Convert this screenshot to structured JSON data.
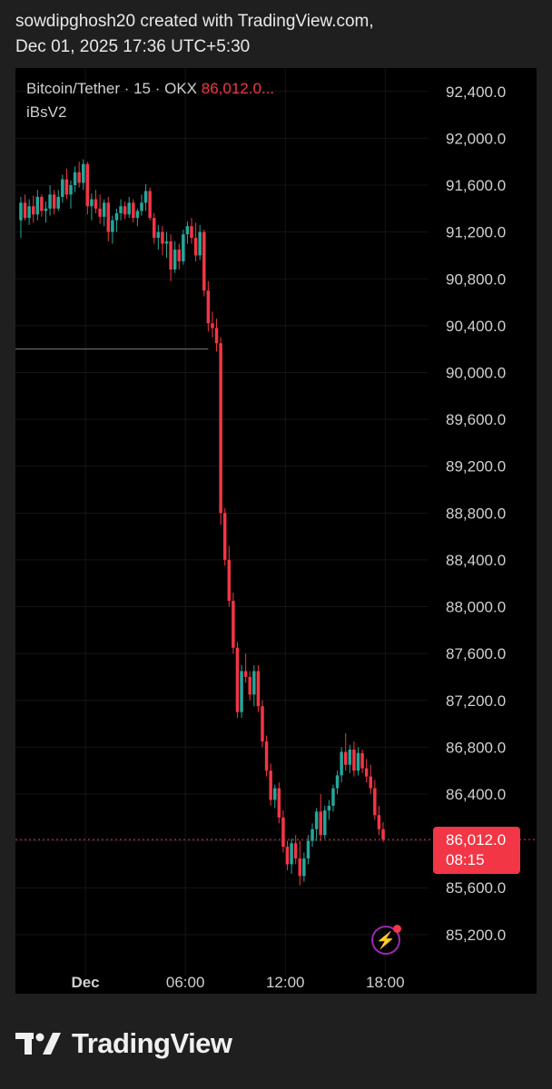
{
  "header": {
    "line1": "sowdipghosh20 created with TradingView.com,",
    "line2": "Dec 01, 2025 17:36 UTC+5:30"
  },
  "legend": {
    "symbol": "Bitcoin/Tether · 15 · OKX",
    "price": "86,012.0...",
    "indicator": "iBsV2"
  },
  "last_price": {
    "value": "86,012.0",
    "countdown": "08:15"
  },
  "footer": {
    "brand": "TradingView"
  },
  "colors": {
    "up": "#26a69a",
    "down": "#f23645",
    "background": "#000000",
    "text": "#cfcfcf",
    "grid": "#151515"
  },
  "icons": {
    "alert": "lightning-bolt-icon",
    "logo": "tradingview-logo-icon"
  },
  "chart_data": {
    "type": "candlestick",
    "title": "Bitcoin/Tether · 15 · OKX",
    "interval": "15",
    "exchange": "OKX",
    "y_ticks": [
      "92,400.0",
      "92,000.0",
      "91,600.0",
      "91,200.0",
      "90,800.0",
      "90,400.0",
      "90,000.0",
      "89,600.0",
      "89,200.0",
      "88,800.0",
      "88,400.0",
      "88,000.0",
      "87,600.0",
      "87,200.0",
      "86,800.0",
      "86,400.0",
      "86,000.0",
      "85,600.0",
      "85,200.0"
    ],
    "y_tick_values": [
      92400,
      92000,
      91600,
      91200,
      90800,
      90400,
      90000,
      89600,
      89200,
      88800,
      88400,
      88000,
      87600,
      87200,
      86800,
      86400,
      86000,
      85600,
      85200
    ],
    "x_ticks": [
      {
        "label": "Dec",
        "hour": 0
      },
      {
        "label": "06:00",
        "hour": 6
      },
      {
        "label": "12:00",
        "hour": 12
      },
      {
        "label": "18:00",
        "hour": 18
      }
    ],
    "x_range_hours": [
      -4.2,
      20.6
    ],
    "ylim": [
      84850,
      92600
    ],
    "horizontal_level": 90200,
    "last_price": 86012.0,
    "candle_interval_hours": 0.25,
    "start_hour": -4.0,
    "candles": [
      [
        91300,
        91500,
        91150,
        91450
      ],
      [
        91450,
        91520,
        91300,
        91320
      ],
      [
        91320,
        91480,
        91260,
        91420
      ],
      [
        91420,
        91510,
        91280,
        91350
      ],
      [
        91350,
        91560,
        91300,
        91500
      ],
      [
        91500,
        91520,
        91330,
        91380
      ],
      [
        91380,
        91460,
        91280,
        91400
      ],
      [
        91400,
        91600,
        91340,
        91520
      ],
      [
        91520,
        91560,
        91350,
        91400
      ],
      [
        91400,
        91560,
        91380,
        91500
      ],
      [
        91500,
        91690,
        91450,
        91650
      ],
      [
        91650,
        91740,
        91480,
        91520
      ],
      [
        91520,
        91640,
        91400,
        91600
      ],
      [
        91600,
        91760,
        91540,
        91710
      ],
      [
        91710,
        91800,
        91580,
        91620
      ],
      [
        91620,
        91820,
        91560,
        91780
      ],
      [
        91780,
        91800,
        91350,
        91420
      ],
      [
        91420,
        91530,
        91300,
        91480
      ],
      [
        91480,
        91560,
        91360,
        91400
      ],
      [
        91400,
        91520,
        91270,
        91330
      ],
      [
        91330,
        91480,
        91250,
        91450
      ],
      [
        91450,
        91500,
        91120,
        91200
      ],
      [
        91200,
        91340,
        91100,
        91300
      ],
      [
        91300,
        91400,
        91200,
        91360
      ],
      [
        91360,
        91480,
        91300,
        91420
      ],
      [
        91420,
        91460,
        91310,
        91350
      ],
      [
        91350,
        91500,
        91320,
        91450
      ],
      [
        91450,
        91480,
        91280,
        91320
      ],
      [
        91320,
        91400,
        91250,
        91380
      ],
      [
        91380,
        91520,
        91340,
        91450
      ],
      [
        91450,
        91610,
        91380,
        91550
      ],
      [
        91550,
        91580,
        91300,
        91320
      ],
      [
        91320,
        91360,
        91100,
        91150
      ],
      [
        91150,
        91260,
        91050,
        91200
      ],
      [
        91200,
        91250,
        91000,
        91100
      ],
      [
        91100,
        91200,
        90980,
        91120
      ],
      [
        91120,
        91180,
        90780,
        90880
      ],
      [
        90880,
        91120,
        90850,
        91050
      ],
      [
        91050,
        91100,
        90880,
        90950
      ],
      [
        90950,
        91220,
        90920,
        91180
      ],
      [
        91180,
        91290,
        91100,
        91250
      ],
      [
        91250,
        91320,
        91100,
        91150
      ],
      [
        91150,
        91280,
        90950,
        91000
      ],
      [
        91000,
        91260,
        90960,
        91200
      ],
      [
        91200,
        91220,
        90650,
        90700
      ],
      [
        90700,
        90780,
        90350,
        90420
      ],
      [
        90420,
        90520,
        90300,
        90380
      ],
      [
        90380,
        90460,
        90180,
        90250
      ],
      [
        90250,
        90300,
        88700,
        88800
      ],
      [
        88800,
        88840,
        88350,
        88400
      ],
      [
        88400,
        88520,
        88000,
        88050
      ],
      [
        88050,
        88120,
        87600,
        87650
      ],
      [
        87650,
        87700,
        87050,
        87100
      ],
      [
        87100,
        87500,
        87050,
        87450
      ],
      [
        87450,
        87600,
        87350,
        87400
      ],
      [
        87400,
        87450,
        87200,
        87250
      ],
      [
        87250,
        87500,
        87150,
        87450
      ],
      [
        87450,
        87500,
        87100,
        87150
      ],
      [
        87150,
        87200,
        86800,
        86850
      ],
      [
        86850,
        86900,
        86550,
        86600
      ],
      [
        86600,
        86660,
        86300,
        86350
      ],
      [
        86350,
        86480,
        86280,
        86450
      ],
      [
        86450,
        86500,
        86150,
        86200
      ],
      [
        86200,
        86260,
        85900,
        85950
      ],
      [
        85950,
        86000,
        85750,
        85800
      ],
      [
        85800,
        86020,
        85720,
        85980
      ],
      [
        85980,
        86050,
        85800,
        85850
      ],
      [
        85850,
        86000,
        85620,
        85700
      ],
      [
        85700,
        85900,
        85650,
        85850
      ],
      [
        85850,
        86050,
        85800,
        86000
      ],
      [
        86000,
        86150,
        85950,
        86100
      ],
      [
        86100,
        86280,
        86000,
        86250
      ],
      [
        86250,
        86400,
        86000,
        86050
      ],
      [
        86050,
        86300,
        86020,
        86260
      ],
      [
        86260,
        86350,
        86180,
        86300
      ],
      [
        86300,
        86480,
        86250,
        86450
      ],
      [
        86450,
        86600,
        86400,
        86560
      ],
      [
        86560,
        86800,
        86500,
        86760
      ],
      [
        86760,
        86920,
        86600,
        86650
      ],
      [
        86650,
        86820,
        86580,
        86780
      ],
      [
        86780,
        86850,
        86550,
        86600
      ],
      [
        86600,
        86800,
        86560,
        86750
      ],
      [
        86750,
        86780,
        86580,
        86620
      ],
      [
        86620,
        86700,
        86500,
        86550
      ],
      [
        86550,
        86650,
        86400,
        86450
      ],
      [
        86450,
        86520,
        86180,
        86220
      ],
      [
        86220,
        86300,
        86050,
        86100
      ],
      [
        86100,
        86160,
        85990,
        86012
      ]
    ]
  }
}
